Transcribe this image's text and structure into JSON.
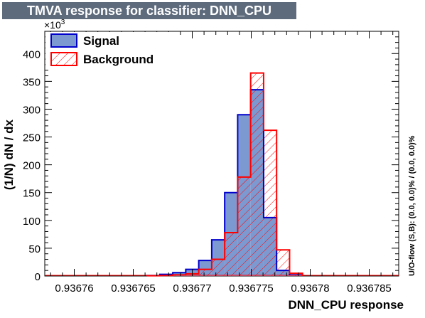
{
  "header": {
    "title": "TMVA response for classifier: DNN_CPU"
  },
  "chart_data": {
    "type": "histogram",
    "xlabel": "DNN_CPU response",
    "ylabel": "(1/N) dN / dx",
    "y_multiplier": "×10",
    "y_multiplier_exp": "3",
    "side_label": "U/O-flow (S,B): (0.0, 0.0)% / (0.0, 0.0)%",
    "xlim": [
      0.9367575,
      0.9367875
    ],
    "ylim": [
      0,
      440
    ],
    "xticks": [
      {
        "value": 0.93676,
        "label": "0.93676"
      },
      {
        "value": 0.936765,
        "label": "0.936765"
      },
      {
        "value": 0.93677,
        "label": "0.93677"
      },
      {
        "value": 0.936775,
        "label": "0.936775"
      },
      {
        "value": 0.93678,
        "label": "0.93678"
      },
      {
        "value": 0.936785,
        "label": "0.936785"
      }
    ],
    "yticks": [
      0,
      50,
      100,
      150,
      200,
      250,
      300,
      350,
      400
    ],
    "bin_edges": [
      0.9367575,
      0.93676,
      0.9367625,
      0.936765,
      0.9367675,
      0.93677,
      0.9367725,
      0.936775,
      0.9367775,
      0.93678,
      0.9367825,
      0.936785,
      0.9367875
    ],
    "fine_bins": {
      "x_start": 0.93676615,
      "bin_width": 1.1e-06,
      "count": 12
    },
    "series": [
      {
        "name": "Signal",
        "color": "#0000cc",
        "fill": "#7d99d1",
        "values": [
          1,
          3,
          6,
          12,
          28,
          65,
          150,
          290,
          335,
          105,
          10,
          2
        ]
      },
      {
        "name": "Background",
        "color": "#ff0000",
        "fill": "hatched",
        "values": [
          0.5,
          1,
          2,
          4,
          12,
          30,
          78,
          178,
          365,
          262,
          47,
          5
        ]
      }
    ],
    "legend": {
      "placement": "top-left",
      "entries": [
        {
          "label": "Signal"
        },
        {
          "label": "Background"
        }
      ]
    }
  }
}
